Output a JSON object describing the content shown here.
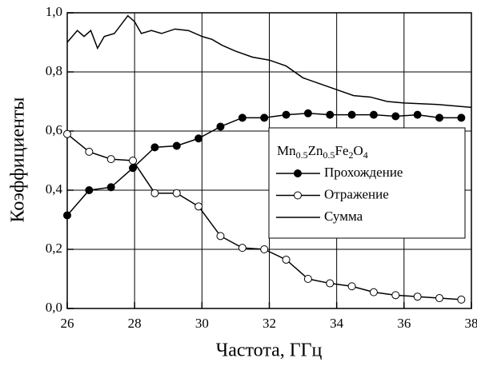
{
  "chart_data": {
    "type": "line",
    "xlabel": "Частота, ГГц",
    "ylabel": "Коэффициенты",
    "legend_title": [
      "Mn",
      "0.5",
      "Zn",
      "0.5",
      "Fe",
      "2",
      "O",
      "4"
    ],
    "xlim": [
      26,
      38
    ],
    "xticks": [
      26,
      28,
      30,
      32,
      34,
      36,
      38
    ],
    "ylim": [
      0,
      1
    ],
    "yticks": [
      {
        "value": 0,
        "label": "0,0"
      },
      {
        "value": 0.2,
        "label": "0,2"
      },
      {
        "value": 0.4,
        "label": "0,4"
      },
      {
        "value": 0.6,
        "label": "0,6"
      },
      {
        "value": 0.8,
        "label": "0,8"
      },
      {
        "value": 1,
        "label": "1,0"
      }
    ],
    "grid": true,
    "series": [
      {
        "name": "Прохождение",
        "color": "#000000",
        "marker": "filled",
        "x": [
          26,
          26.65,
          27.3,
          27.95,
          28.6,
          29.25,
          29.9,
          30.55,
          31.2,
          31.85,
          32.5,
          33.15,
          33.8,
          34.45,
          35.1,
          35.75,
          36.4,
          37.05,
          37.7
        ],
        "values": [
          0.315,
          0.4,
          0.41,
          0.475,
          0.545,
          0.55,
          0.575,
          0.615,
          0.645,
          0.645,
          0.655,
          0.66,
          0.655,
          0.655,
          0.655,
          0.65,
          0.655,
          0.645,
          0.645
        ]
      },
      {
        "name": "Отражение",
        "color": "#000000",
        "marker": "open",
        "x": [
          26,
          26.65,
          27.3,
          27.95,
          28.6,
          29.25,
          29.9,
          30.55,
          31.2,
          31.85,
          32.5,
          33.15,
          33.8,
          34.45,
          35.1,
          35.75,
          36.4,
          37.05,
          37.7
        ],
        "values": [
          0.59,
          0.53,
          0.505,
          0.5,
          0.39,
          0.39,
          0.345,
          0.245,
          0.205,
          0.2,
          0.165,
          0.1,
          0.085,
          0.075,
          0.055,
          0.045,
          0.04,
          0.035,
          0.03
        ]
      },
      {
        "name": "Сумма",
        "color": "#000000",
        "marker": "none",
        "x": [
          26,
          26.3,
          26.5,
          26.7,
          26.9,
          27.1,
          27.4,
          27.8,
          28.0,
          28.2,
          28.5,
          28.8,
          29.2,
          29.6,
          30.0,
          30.3,
          30.6,
          31.0,
          31.5,
          32.0,
          32.5,
          33.0,
          33.5,
          34.0,
          34.5,
          35.0,
          35.5,
          36.0,
          37.0,
          38.0
        ],
        "values": [
          0.9,
          0.94,
          0.92,
          0.94,
          0.88,
          0.92,
          0.93,
          0.99,
          0.97,
          0.93,
          0.94,
          0.93,
          0.945,
          0.94,
          0.92,
          0.91,
          0.89,
          0.87,
          0.85,
          0.84,
          0.82,
          0.78,
          0.76,
          0.74,
          0.72,
          0.715,
          0.7,
          0.695,
          0.69,
          0.68
        ]
      }
    ]
  }
}
